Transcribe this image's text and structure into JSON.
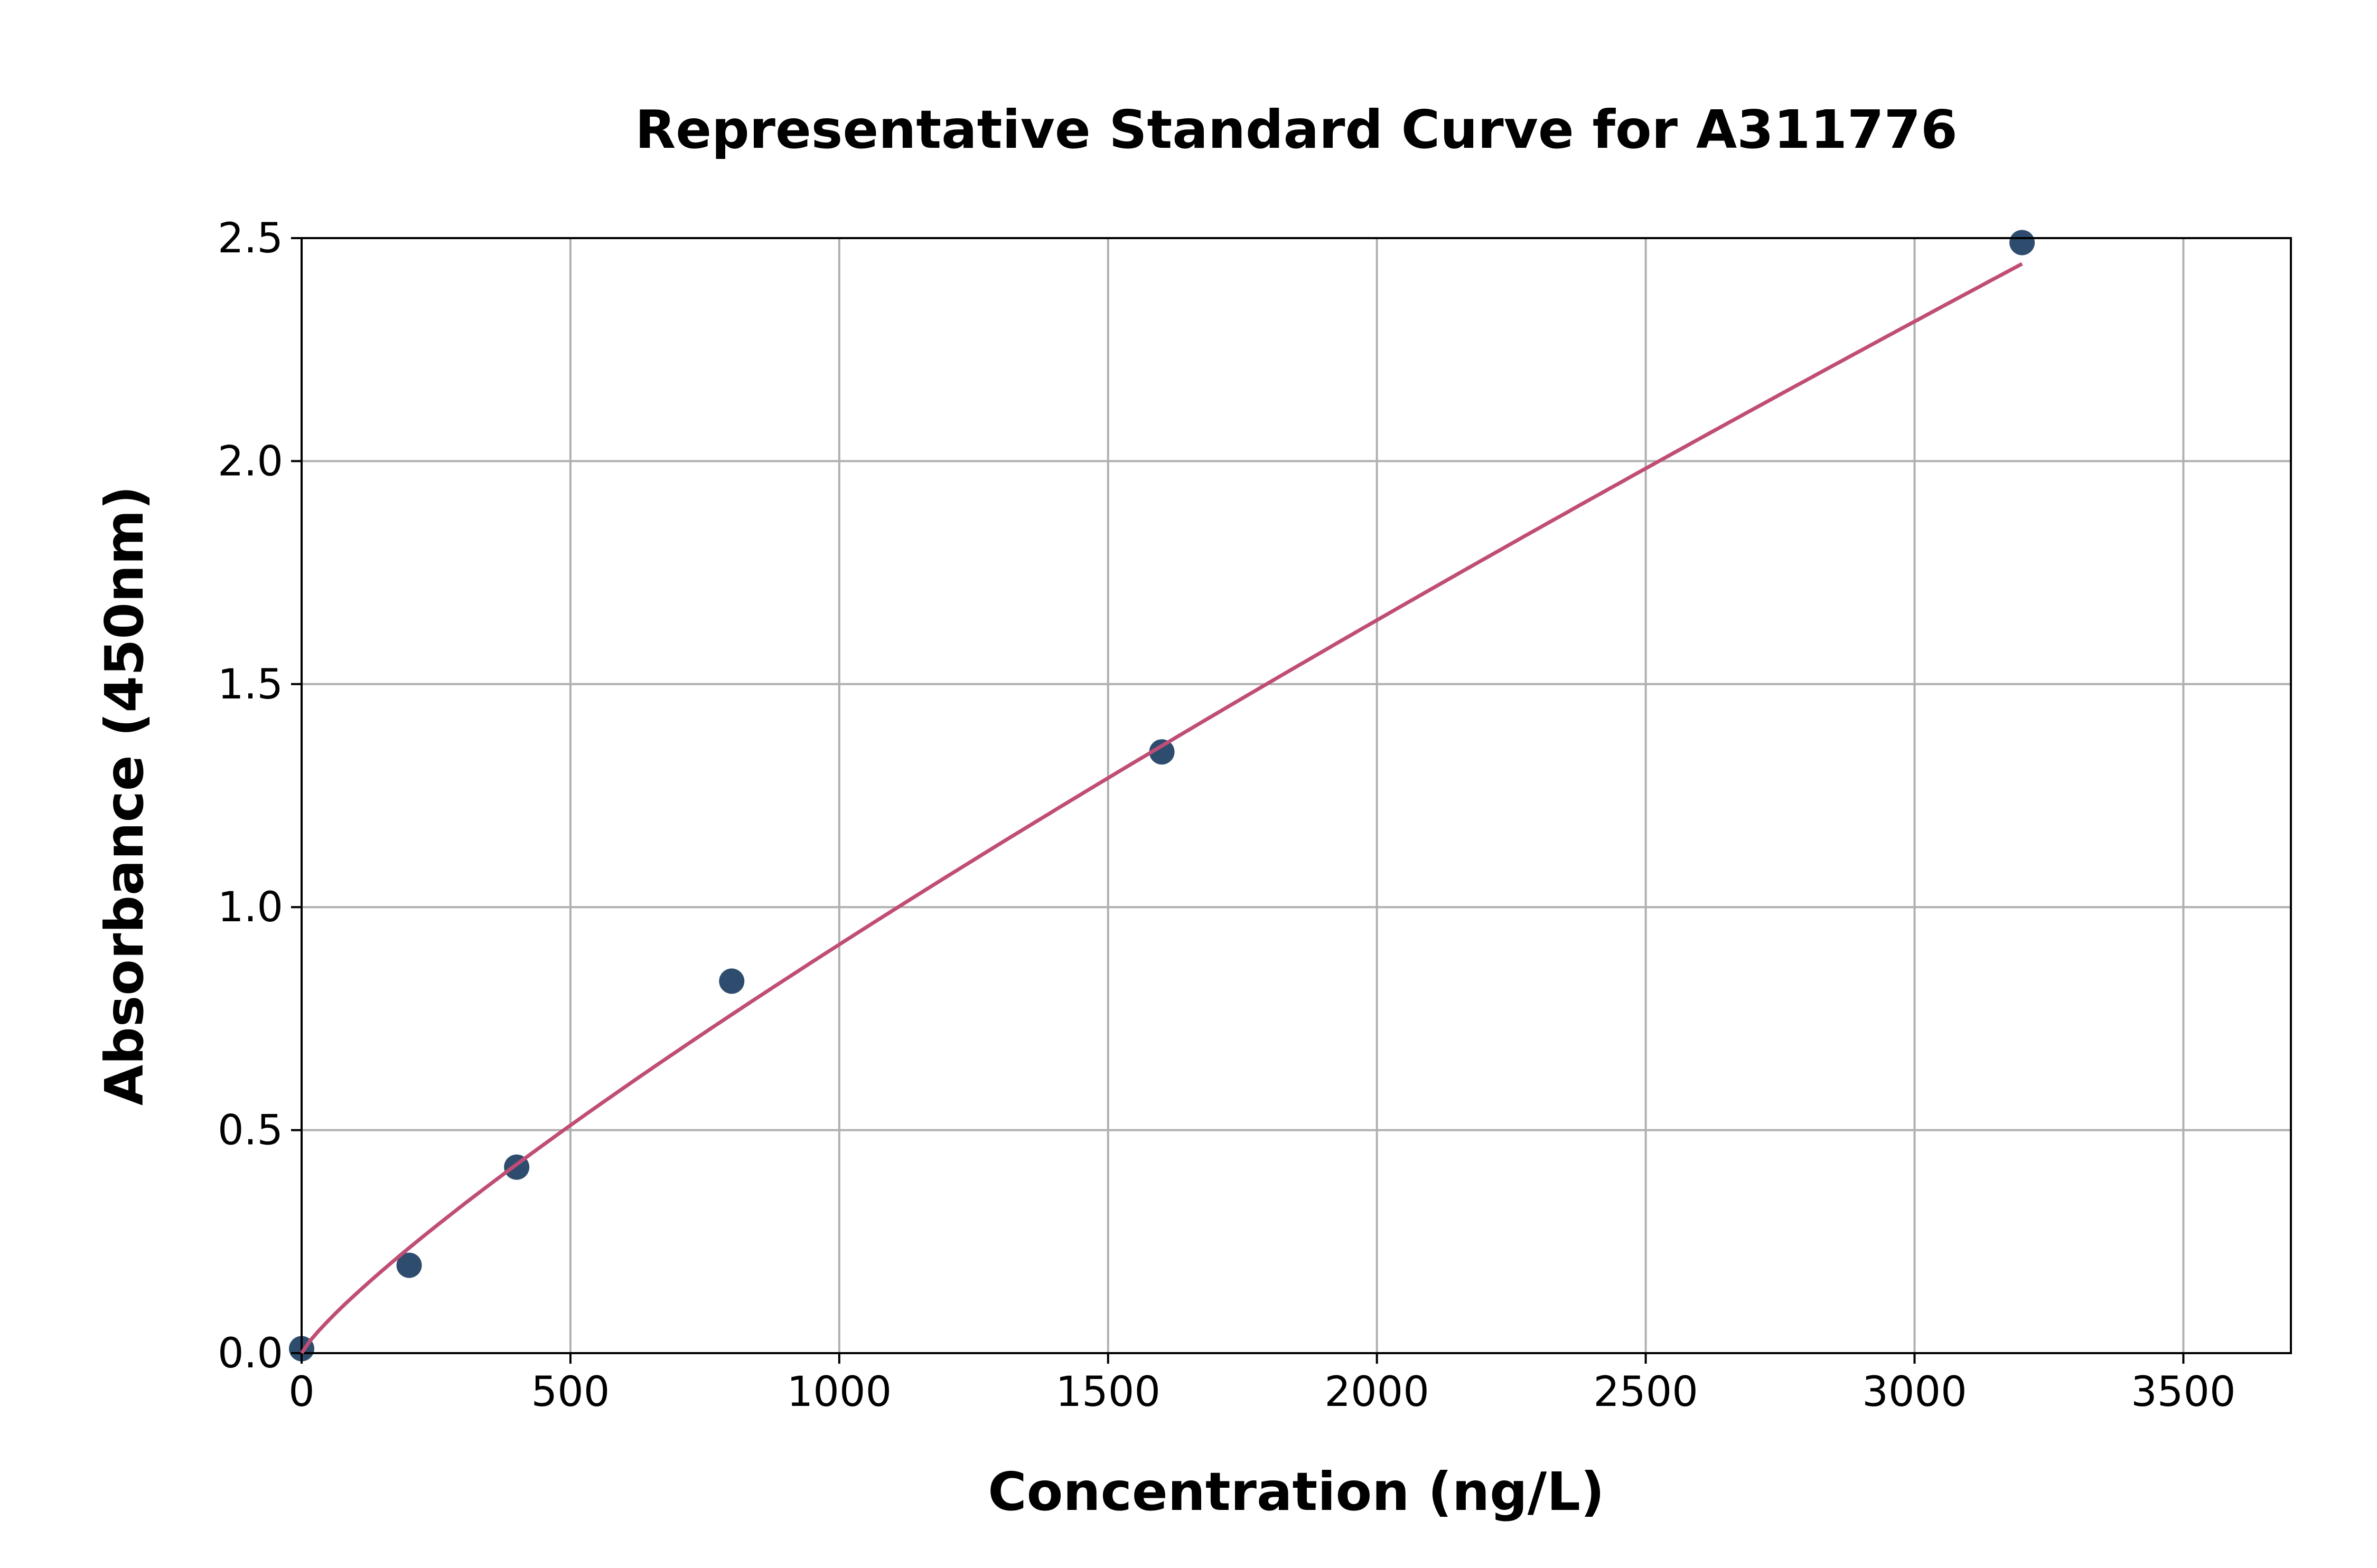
{
  "chart_data": {
    "type": "scatter",
    "title": "Representative Standard Curve for A311776",
    "xlabel": "Concentration (ng/L)",
    "ylabel": "Absorbance (450nm)",
    "xlim": [
      0,
      3700
    ],
    "ylim": [
      0,
      2.5
    ],
    "xticks": [
      "0",
      "500",
      "1000",
      "1500",
      "2000",
      "2500",
      "3000",
      "3500"
    ],
    "yticks": [
      "0.0",
      "0.5",
      "1.0",
      "1.5",
      "2.0",
      "2.5"
    ],
    "grid": true,
    "points": {
      "x": [
        0,
        200,
        400,
        800,
        1600,
        3200
      ],
      "y": [
        0.01,
        0.197,
        0.417,
        0.834,
        1.348,
        2.49
      ]
    },
    "fit_curve": {
      "model": "power",
      "a": 0.00271,
      "b": 0.843
    },
    "colors": {
      "points": "#2e4d6e",
      "curve": "#c04d75",
      "grid": "#b0b0b0"
    }
  }
}
